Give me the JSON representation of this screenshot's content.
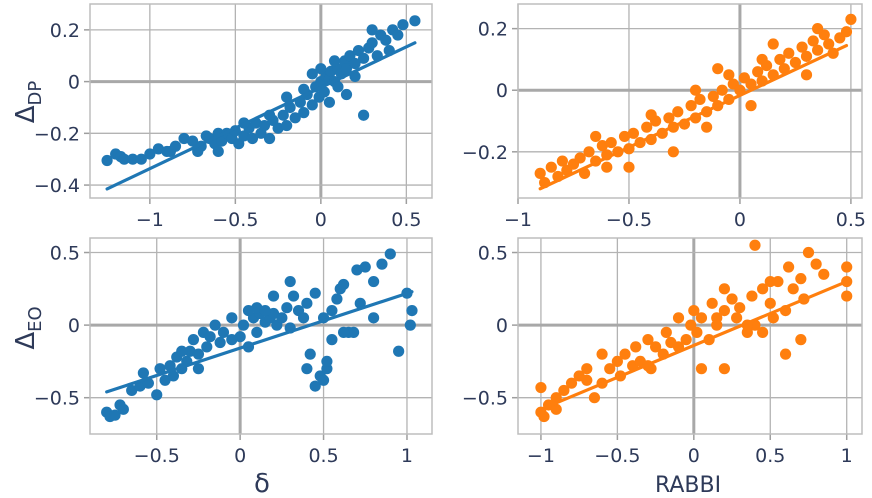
{
  "chart_data": [
    {
      "type": "scatter",
      "panel": "top-left",
      "color": "#1f77b4",
      "xlim": [
        -1.35,
        0.65
      ],
      "ylim": [
        -0.45,
        0.3
      ],
      "xticks": [
        -1,
        -0.5,
        0,
        0.5
      ],
      "yticks": [
        -0.4,
        -0.2,
        0,
        0.2
      ],
      "xtick_labels": [
        "−1",
        "−0.5",
        "0",
        "0.5"
      ],
      "ytick_labels": [
        "−0.4",
        "−0.2",
        "0",
        "0.2"
      ],
      "xlabel": "",
      "ylabel_main": "Δ",
      "ylabel_sub": "DP",
      "trend": [
        [
          -1.25,
          -0.415
        ],
        [
          0.55,
          0.15
        ]
      ],
      "points": [
        [
          -1.25,
          -0.305
        ],
        [
          -1.2,
          -0.28
        ],
        [
          -1.17,
          -0.29
        ],
        [
          -1.15,
          -0.3
        ],
        [
          -1.1,
          -0.3
        ],
        [
          -1.05,
          -0.3
        ],
        [
          -1.0,
          -0.28
        ],
        [
          -0.95,
          -0.26
        ],
        [
          -0.9,
          -0.27
        ],
        [
          -0.85,
          -0.25
        ],
        [
          -0.8,
          -0.22
        ],
        [
          -0.75,
          -0.23
        ],
        [
          -0.72,
          -0.27
        ],
        [
          -0.7,
          -0.25
        ],
        [
          -0.67,
          -0.21
        ],
        [
          -0.65,
          -0.22
        ],
        [
          -0.62,
          -0.24
        ],
        [
          -0.6,
          -0.2
        ],
        [
          -0.58,
          -0.23
        ],
        [
          -0.55,
          -0.2
        ],
        [
          -0.52,
          -0.22
        ],
        [
          -0.5,
          -0.19
        ],
        [
          -0.48,
          -0.24
        ],
        [
          -0.45,
          -0.21
        ],
        [
          -0.42,
          -0.18
        ],
        [
          -0.4,
          -0.22
        ],
        [
          -0.38,
          -0.16
        ],
        [
          -0.35,
          -0.2
        ],
        [
          -0.33,
          -0.17
        ],
        [
          -0.3,
          -0.22
        ],
        [
          -0.28,
          -0.15
        ],
        [
          -0.25,
          -0.18
        ],
        [
          -0.22,
          -0.13
        ],
        [
          -0.2,
          -0.17
        ],
        [
          -0.18,
          -0.1
        ],
        [
          -0.15,
          -0.14
        ],
        [
          -0.12,
          -0.08
        ],
        [
          -0.1,
          -0.12
        ],
        [
          -0.08,
          -0.05
        ],
        [
          -0.05,
          -0.09
        ],
        [
          -0.03,
          -0.02
        ],
        [
          -0.01,
          -0.06
        ],
        [
          0.0,
          0.0
        ],
        [
          0.02,
          -0.04
        ],
        [
          0.03,
          0.02
        ],
        [
          0.05,
          0.01
        ],
        [
          0.06,
          0.04
        ],
        [
          0.08,
          0.0
        ],
        [
          0.1,
          0.05
        ],
        [
          0.12,
          0.03
        ],
        [
          0.14,
          0.08
        ],
        [
          0.15,
          0.05
        ],
        [
          0.17,
          0.1
        ],
        [
          0.2,
          0.07
        ],
        [
          0.22,
          0.12
        ],
        [
          0.25,
          0.09
        ],
        [
          0.28,
          0.13
        ],
        [
          0.3,
          0.15
        ],
        [
          0.33,
          0.1
        ],
        [
          0.35,
          0.18
        ],
        [
          0.38,
          0.16
        ],
        [
          0.4,
          0.12
        ],
        [
          0.42,
          0.2
        ],
        [
          0.45,
          0.18
        ],
        [
          0.48,
          0.22
        ],
        [
          0.55,
          0.235
        ],
        [
          -0.2,
          -0.06
        ],
        [
          -0.1,
          -0.03
        ],
        [
          0.05,
          -0.08
        ],
        [
          0.1,
          -0.02
        ],
        [
          0.15,
          -0.05
        ],
        [
          0.2,
          0.02
        ],
        [
          0.25,
          -0.13
        ],
        [
          -0.3,
          -0.13
        ],
        [
          -0.45,
          -0.16
        ],
        [
          0.0,
          0.05
        ],
        [
          0.08,
          0.08
        ],
        [
          -0.05,
          0.03
        ],
        [
          -0.6,
          -0.27
        ],
        [
          -0.88,
          -0.27
        ],
        [
          0.3,
          0.2
        ]
      ]
    },
    {
      "type": "scatter",
      "panel": "top-right",
      "color": "#ff7f0e",
      "xlim": [
        -1.0,
        0.55
      ],
      "ylim": [
        -0.35,
        0.28
      ],
      "xticks": [
        -1,
        -0.5,
        0,
        0.5
      ],
      "yticks": [
        -0.2,
        0,
        0.2
      ],
      "xtick_labels": [
        "−1",
        "−0.5",
        "0",
        "0.5"
      ],
      "ytick_labels": [
        "−0.2",
        "0",
        "0.2"
      ],
      "xlabel": "",
      "trend": [
        [
          -0.9,
          -0.32
        ],
        [
          0.48,
          0.145
        ]
      ],
      "points": [
        [
          -0.9,
          -0.27
        ],
        [
          -0.88,
          -0.3
        ],
        [
          -0.85,
          -0.25
        ],
        [
          -0.82,
          -0.28
        ],
        [
          -0.8,
          -0.23
        ],
        [
          -0.78,
          -0.26
        ],
        [
          -0.75,
          -0.24
        ],
        [
          -0.72,
          -0.22
        ],
        [
          -0.7,
          -0.27
        ],
        [
          -0.68,
          -0.2
        ],
        [
          -0.65,
          -0.23
        ],
        [
          -0.62,
          -0.18
        ],
        [
          -0.6,
          -0.21
        ],
        [
          -0.58,
          -0.17
        ],
        [
          -0.55,
          -0.2
        ],
        [
          -0.52,
          -0.15
        ],
        [
          -0.5,
          -0.19
        ],
        [
          -0.48,
          -0.14
        ],
        [
          -0.45,
          -0.17
        ],
        [
          -0.42,
          -0.12
        ],
        [
          -0.4,
          -0.16
        ],
        [
          -0.38,
          -0.1
        ],
        [
          -0.35,
          -0.14
        ],
        [
          -0.32,
          -0.09
        ],
        [
          -0.3,
          -0.12
        ],
        [
          -0.28,
          -0.07
        ],
        [
          -0.25,
          -0.11
        ],
        [
          -0.22,
          -0.05
        ],
        [
          -0.2,
          -0.09
        ],
        [
          -0.18,
          -0.03
        ],
        [
          -0.15,
          -0.07
        ],
        [
          -0.12,
          -0.02
        ],
        [
          -0.1,
          -0.05
        ],
        [
          -0.08,
          0.0
        ],
        [
          -0.05,
          -0.03
        ],
        [
          -0.03,
          0.02
        ],
        [
          0.0,
          0.0
        ],
        [
          0.02,
          0.04
        ],
        [
          0.05,
          0.02
        ],
        [
          0.08,
          0.06
        ],
        [
          0.1,
          0.03
        ],
        [
          0.12,
          0.08
        ],
        [
          0.15,
          0.05
        ],
        [
          0.18,
          0.1
        ],
        [
          0.2,
          0.07
        ],
        [
          0.22,
          0.12
        ],
        [
          0.25,
          0.09
        ],
        [
          0.28,
          0.14
        ],
        [
          0.3,
          0.11
        ],
        [
          0.33,
          0.16
        ],
        [
          0.35,
          0.13
        ],
        [
          0.38,
          0.18
        ],
        [
          0.4,
          0.15
        ],
        [
          0.42,
          0.12
        ],
        [
          0.45,
          0.17
        ],
        [
          0.48,
          0.19
        ],
        [
          0.5,
          0.23
        ],
        [
          -0.1,
          0.07
        ],
        [
          -0.2,
          0.0
        ],
        [
          -0.3,
          -0.2
        ],
        [
          -0.5,
          -0.25
        ],
        [
          0.05,
          -0.05
        ],
        [
          0.15,
          0.15
        ],
        [
          -0.05,
          0.05
        ],
        [
          0.3,
          0.05
        ],
        [
          -0.65,
          -0.15
        ],
        [
          -0.4,
          -0.08
        ],
        [
          -0.15,
          -0.12
        ],
        [
          0.1,
          0.1
        ],
        [
          -0.6,
          -0.25
        ],
        [
          0.35,
          0.2
        ]
      ]
    },
    {
      "type": "scatter",
      "panel": "bottom-left",
      "color": "#1f77b4",
      "xlim": [
        -0.9,
        1.15
      ],
      "ylim": [
        -0.75,
        0.6
      ],
      "xticks": [
        -0.5,
        0,
        0.5,
        1
      ],
      "yticks": [
        -0.5,
        0,
        0.5
      ],
      "xtick_labels": [
        "−0.5",
        "0",
        "0.5",
        "1"
      ],
      "ytick_labels": [
        "−0.5",
        "0",
        "0.5"
      ],
      "xlabel": "δ",
      "ylabel_main": "Δ",
      "ylabel_sub": "EO",
      "trend": [
        [
          -0.8,
          -0.46
        ],
        [
          1.03,
          0.23
        ]
      ],
      "points": [
        [
          -0.8,
          -0.6
        ],
        [
          -0.78,
          -0.63
        ],
        [
          -0.75,
          -0.62
        ],
        [
          -0.72,
          -0.55
        ],
        [
          -0.7,
          -0.58
        ],
        [
          -0.65,
          -0.45
        ],
        [
          -0.6,
          -0.42
        ],
        [
          -0.58,
          -0.33
        ],
        [
          -0.55,
          -0.4
        ],
        [
          -0.5,
          -0.48
        ],
        [
          -0.48,
          -0.3
        ],
        [
          -0.45,
          -0.38
        ],
        [
          -0.42,
          -0.28
        ],
        [
          -0.4,
          -0.35
        ],
        [
          -0.38,
          -0.22
        ],
        [
          -0.35,
          -0.3
        ],
        [
          -0.32,
          -0.25
        ],
        [
          -0.3,
          -0.18
        ],
        [
          -0.28,
          -0.1
        ],
        [
          -0.25,
          -0.2
        ],
        [
          -0.22,
          -0.05
        ],
        [
          -0.2,
          -0.15
        ],
        [
          -0.18,
          -0.08
        ],
        [
          -0.15,
          0.0
        ],
        [
          -0.12,
          -0.12
        ],
        [
          -0.1,
          -0.05
        ],
        [
          -0.05,
          0.05
        ],
        [
          0.0,
          -0.08
        ],
        [
          0.02,
          0.0
        ],
        [
          0.05,
          -0.15
        ],
        [
          0.08,
          0.05
        ],
        [
          0.1,
          -0.05
        ],
        [
          0.12,
          0.08
        ],
        [
          0.15,
          0.02
        ],
        [
          0.18,
          0.05
        ],
        [
          0.2,
          0.08
        ],
        [
          0.22,
          0.0
        ],
        [
          0.25,
          0.05
        ],
        [
          0.28,
          0.12
        ],
        [
          0.3,
          -0.02
        ],
        [
          0.32,
          0.2
        ],
        [
          0.35,
          0.1
        ],
        [
          0.38,
          0.05
        ],
        [
          0.4,
          0.15
        ],
        [
          0.42,
          -0.2
        ],
        [
          0.45,
          0.22
        ],
        [
          0.48,
          -0.35
        ],
        [
          0.5,
          0.05
        ],
        [
          0.52,
          -0.3
        ],
        [
          0.55,
          0.1
        ],
        [
          0.58,
          0.18
        ],
        [
          0.6,
          0.25
        ],
        [
          0.62,
          0.28
        ],
        [
          0.65,
          -0.05
        ],
        [
          0.7,
          0.38
        ],
        [
          0.75,
          0.4
        ],
        [
          0.8,
          0.3
        ],
        [
          0.85,
          0.42
        ],
        [
          0.9,
          0.49
        ],
        [
          0.95,
          -0.18
        ],
        [
          1.0,
          0.22
        ],
        [
          1.02,
          0.0
        ],
        [
          1.03,
          0.1
        ],
        [
          0.45,
          -0.42
        ],
        [
          0.52,
          -0.25
        ],
        [
          0.3,
          0.3
        ],
        [
          0.1,
          0.12
        ],
        [
          -0.05,
          -0.1
        ],
        [
          0.55,
          -0.1
        ],
        [
          0.68,
          -0.05
        ],
        [
          0.2,
          0.2
        ],
        [
          0.15,
          0.1
        ],
        [
          -0.35,
          -0.18
        ],
        [
          0.4,
          -0.3
        ],
        [
          0.72,
          0.15
        ],
        [
          0.62,
          -0.05
        ],
        [
          0.8,
          0.05
        ],
        [
          0.5,
          -0.38
        ],
        [
          -0.25,
          -0.3
        ],
        [
          0.05,
          0.1
        ]
      ]
    },
    {
      "type": "scatter",
      "panel": "bottom-right",
      "color": "#ff7f0e",
      "xlim": [
        -1.15,
        1.1
      ],
      "ylim": [
        -0.75,
        0.6
      ],
      "xticks": [
        -1,
        -0.5,
        0,
        0.5,
        1
      ],
      "yticks": [
        -0.5,
        0,
        0.5
      ],
      "xtick_labels": [
        "−1",
        "−0.5",
        "0",
        "0.5",
        "1"
      ],
      "ytick_labels": [
        "−0.5",
        "0",
        "0.5"
      ],
      "xlabel": "RABBI",
      "trend": [
        [
          -1.0,
          -0.58
        ],
        [
          1.0,
          0.3
        ]
      ],
      "points": [
        [
          -1.0,
          -0.43
        ],
        [
          -1.0,
          -0.6
        ],
        [
          -0.98,
          -0.63
        ],
        [
          -0.95,
          -0.55
        ],
        [
          -0.9,
          -0.58
        ],
        [
          -0.85,
          -0.45
        ],
        [
          -0.8,
          -0.4
        ],
        [
          -0.75,
          -0.35
        ],
        [
          -0.7,
          -0.38
        ],
        [
          -0.65,
          -0.5
        ],
        [
          -0.6,
          -0.4
        ],
        [
          -0.55,
          -0.3
        ],
        [
          -0.5,
          -0.25
        ],
        [
          -0.48,
          -0.35
        ],
        [
          -0.45,
          -0.2
        ],
        [
          -0.4,
          -0.28
        ],
        [
          -0.38,
          -0.15
        ],
        [
          -0.35,
          -0.25
        ],
        [
          -0.3,
          -0.1
        ],
        [
          -0.28,
          -0.3
        ],
        [
          -0.25,
          -0.15
        ],
        [
          -0.2,
          -0.2
        ],
        [
          -0.18,
          -0.05
        ],
        [
          -0.15,
          -0.12
        ],
        [
          -0.1,
          0.05
        ],
        [
          -0.05,
          -0.1
        ],
        [
          -0.02,
          0.0
        ],
        [
          0.0,
          0.1
        ],
        [
          0.02,
          -0.05
        ],
        [
          0.05,
          0.05
        ],
        [
          0.1,
          -0.1
        ],
        [
          0.12,
          0.15
        ],
        [
          0.15,
          0.05
        ],
        [
          0.2,
          0.1
        ],
        [
          0.25,
          0.18
        ],
        [
          0.28,
          0.05
        ],
        [
          0.3,
          0.12
        ],
        [
          0.35,
          -0.05
        ],
        [
          0.38,
          0.2
        ],
        [
          0.4,
          0.0
        ],
        [
          0.45,
          0.25
        ],
        [
          0.5,
          0.15
        ],
        [
          0.52,
          0.05
        ],
        [
          0.55,
          0.3
        ],
        [
          0.6,
          0.1
        ],
        [
          0.62,
          0.4
        ],
        [
          0.65,
          0.25
        ],
        [
          0.7,
          0.32
        ],
        [
          0.72,
          0.18
        ],
        [
          0.75,
          0.5
        ],
        [
          0.8,
          0.42
        ],
        [
          0.85,
          0.35
        ],
        [
          1.0,
          0.4
        ],
        [
          1.0,
          0.3
        ],
        [
          1.0,
          0.2
        ],
        [
          0.4,
          0.55
        ],
        [
          0.5,
          0.3
        ],
        [
          0.2,
          0.25
        ],
        [
          -0.1,
          -0.15
        ],
        [
          -0.3,
          -0.28
        ],
        [
          0.6,
          -0.2
        ],
        [
          0.7,
          -0.1
        ],
        [
          0.2,
          -0.3
        ],
        [
          -0.6,
          -0.2
        ],
        [
          0.35,
          0.0
        ],
        [
          0.45,
          -0.05
        ],
        [
          -0.7,
          -0.3
        ],
        [
          -0.9,
          -0.5
        ],
        [
          0.05,
          -0.3
        ],
        [
          0.15,
          0.0
        ]
      ]
    }
  ]
}
